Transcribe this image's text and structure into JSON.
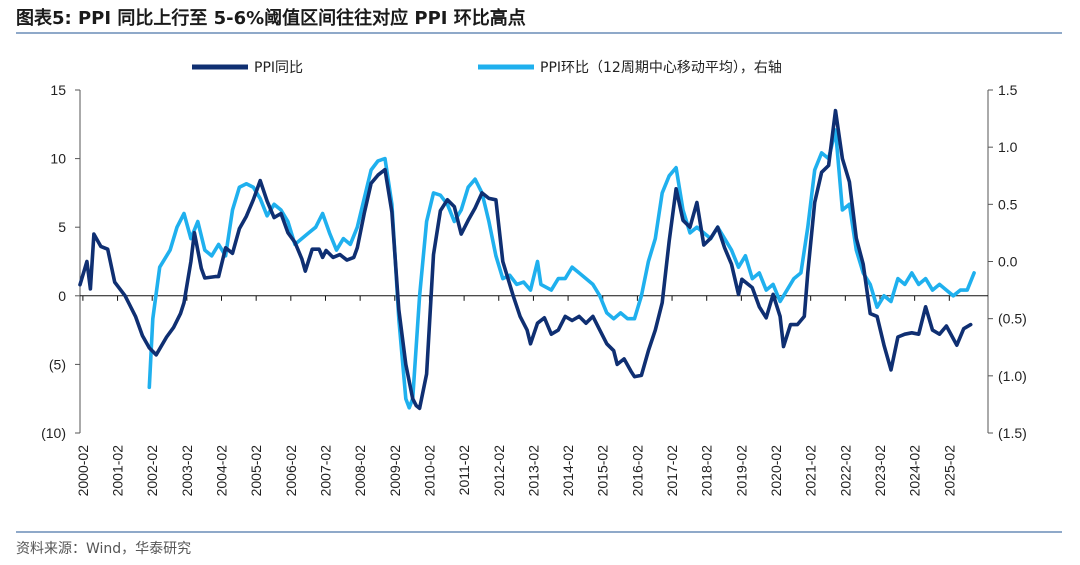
{
  "header": {
    "title": "图表5:  PPI 同比上行至 5-6%阈值区间往往对应 PPI 环比高点"
  },
  "footer": {
    "source": "资料来源：Wind，华泰研究"
  },
  "colors": {
    "series1": "#0f2f72",
    "series2": "#1fb0ee",
    "axis": "#555555",
    "text": "#222222"
  },
  "chart_data": {
    "type": "line",
    "title": "PPI 同比上行至 5-6%阈值区间往往对应 PPI 环比高点",
    "x_tick_labels": [
      "2000-02",
      "2001-02",
      "2002-02",
      "2003-02",
      "2004-02",
      "2005-02",
      "2006-02",
      "2007-02",
      "2008-02",
      "2009-02",
      "2010-02",
      "2011-02",
      "2012-02",
      "2013-02",
      "2014-02",
      "2015-02",
      "2016-02",
      "2017-02",
      "2018-02",
      "2019-02",
      "2020-02",
      "2021-02",
      "2022-02",
      "2023-02",
      "2024-02",
      "2025-02"
    ],
    "x_range": [
      2000.0,
      2026.2
    ],
    "y_left": {
      "range": [
        -10,
        15
      ],
      "tick_values": [
        15,
        10,
        5,
        0,
        -5,
        -10
      ],
      "tick_labels": [
        "15",
        "10",
        "5",
        "0",
        "(5)",
        "(10)"
      ]
    },
    "y_right": {
      "range": [
        -1.5,
        1.5
      ],
      "tick_values": [
        1.5,
        1.0,
        0.5,
        0.0,
        -0.5,
        -1.0,
        -1.5
      ],
      "tick_labels": [
        "1.5",
        "1.0",
        "0.5",
        "0.0",
        "(0.5)",
        "(1.0)",
        "(1.5)"
      ]
    },
    "legend": {
      "position": "top-center"
    },
    "series": [
      {
        "name": "PPI同比",
        "axis": "left",
        "points": [
          [
            2000.0,
            0.8
          ],
          [
            2000.2,
            2.5
          ],
          [
            2000.3,
            0.5
          ],
          [
            2000.4,
            4.5
          ],
          [
            2000.6,
            3.6
          ],
          [
            2000.8,
            3.4
          ],
          [
            2001.0,
            1.0
          ],
          [
            2001.3,
            0.0
          ],
          [
            2001.6,
            -1.5
          ],
          [
            2001.8,
            -2.9
          ],
          [
            2002.0,
            -3.8
          ],
          [
            2002.2,
            -4.3
          ],
          [
            2002.5,
            -3.0
          ],
          [
            2002.7,
            -2.3
          ],
          [
            2002.9,
            -1.3
          ],
          [
            2003.0,
            -0.5
          ],
          [
            2003.2,
            2.5
          ],
          [
            2003.3,
            4.6
          ],
          [
            2003.5,
            2.0
          ],
          [
            2003.6,
            1.3
          ],
          [
            2003.9,
            1.4
          ],
          [
            2004.0,
            1.4
          ],
          [
            2004.2,
            3.5
          ],
          [
            2004.4,
            3.1
          ],
          [
            2004.6,
            4.9
          ],
          [
            2004.8,
            5.8
          ],
          [
            2005.0,
            7.0
          ],
          [
            2005.2,
            8.4
          ],
          [
            2005.4,
            6.9
          ],
          [
            2005.6,
            5.7
          ],
          [
            2005.8,
            6.0
          ],
          [
            2006.0,
            4.6
          ],
          [
            2006.2,
            3.9
          ],
          [
            2006.4,
            2.7
          ],
          [
            2006.5,
            1.8
          ],
          [
            2006.7,
            3.4
          ],
          [
            2006.9,
            3.4
          ],
          [
            2007.0,
            2.8
          ],
          [
            2007.1,
            3.3
          ],
          [
            2007.3,
            2.8
          ],
          [
            2007.5,
            3.0
          ],
          [
            2007.7,
            2.6
          ],
          [
            2007.9,
            2.8
          ],
          [
            2008.0,
            3.5
          ],
          [
            2008.2,
            6.0
          ],
          [
            2008.4,
            8.2
          ],
          [
            2008.6,
            8.8
          ],
          [
            2008.8,
            9.2
          ],
          [
            2009.0,
            6.1
          ],
          [
            2009.2,
            -1.0
          ],
          [
            2009.4,
            -5.0
          ],
          [
            2009.6,
            -7.5
          ],
          [
            2009.7,
            -8.0
          ],
          [
            2009.8,
            -8.2
          ],
          [
            2010.0,
            -5.7
          ],
          [
            2010.2,
            3.0
          ],
          [
            2010.4,
            6.2
          ],
          [
            2010.6,
            7.0
          ],
          [
            2010.8,
            6.5
          ],
          [
            2011.0,
            4.5
          ],
          [
            2011.2,
            5.5
          ],
          [
            2011.4,
            6.4
          ],
          [
            2011.6,
            7.5
          ],
          [
            2011.8,
            7.1
          ],
          [
            2012.0,
            7.0
          ],
          [
            2012.2,
            2.5
          ],
          [
            2012.5,
            0.0
          ],
          [
            2012.7,
            -1.5
          ],
          [
            2012.9,
            -2.5
          ],
          [
            2013.0,
            -3.5
          ],
          [
            2013.2,
            -2.0
          ],
          [
            2013.4,
            -1.6
          ],
          [
            2013.6,
            -2.8
          ],
          [
            2013.8,
            -2.5
          ],
          [
            2014.0,
            -1.5
          ],
          [
            2014.2,
            -1.8
          ],
          [
            2014.4,
            -1.5
          ],
          [
            2014.6,
            -2.0
          ],
          [
            2014.8,
            -1.5
          ],
          [
            2015.0,
            -2.5
          ],
          [
            2015.2,
            -3.5
          ],
          [
            2015.4,
            -4.0
          ],
          [
            2015.5,
            -5.0
          ],
          [
            2015.7,
            -4.6
          ],
          [
            2015.9,
            -5.5
          ],
          [
            2016.0,
            -5.9
          ],
          [
            2016.2,
            -5.8
          ],
          [
            2016.4,
            -4.0
          ],
          [
            2016.6,
            -2.5
          ],
          [
            2016.8,
            -0.5
          ],
          [
            2017.0,
            4.0
          ],
          [
            2017.2,
            7.8
          ],
          [
            2017.4,
            5.5
          ],
          [
            2017.6,
            5.0
          ],
          [
            2017.8,
            6.8
          ],
          [
            2018.0,
            3.7
          ],
          [
            2018.2,
            4.2
          ],
          [
            2018.4,
            5.0
          ],
          [
            2018.6,
            3.5
          ],
          [
            2018.8,
            2.3
          ],
          [
            2019.0,
            0.1
          ],
          [
            2019.1,
            1.2
          ],
          [
            2019.4,
            0.6
          ],
          [
            2019.6,
            -0.8
          ],
          [
            2019.8,
            -1.6
          ],
          [
            2020.0,
            0.1
          ],
          [
            2020.2,
            -1.5
          ],
          [
            2020.3,
            -3.7
          ],
          [
            2020.5,
            -2.1
          ],
          [
            2020.7,
            -2.1
          ],
          [
            2020.9,
            -1.5
          ],
          [
            2021.0,
            1.7
          ],
          [
            2021.2,
            6.8
          ],
          [
            2021.4,
            9.0
          ],
          [
            2021.6,
            9.5
          ],
          [
            2021.8,
            13.5
          ],
          [
            2022.0,
            10.0
          ],
          [
            2022.2,
            8.3
          ],
          [
            2022.4,
            4.2
          ],
          [
            2022.6,
            2.3
          ],
          [
            2022.8,
            -1.3
          ],
          [
            2023.0,
            -1.5
          ],
          [
            2023.2,
            -3.6
          ],
          [
            2023.4,
            -5.4
          ],
          [
            2023.6,
            -3.0
          ],
          [
            2023.8,
            -2.8
          ],
          [
            2024.0,
            -2.7
          ],
          [
            2024.2,
            -2.8
          ],
          [
            2024.4,
            -0.8
          ],
          [
            2024.6,
            -2.5
          ],
          [
            2024.8,
            -2.8
          ],
          [
            2025.0,
            -2.2
          ],
          [
            2025.3,
            -3.6
          ],
          [
            2025.5,
            -2.4
          ],
          [
            2025.7,
            -2.1
          ]
        ]
      },
      {
        "name": "PPI环比（12周期中心移动平均），右轴",
        "axis": "right",
        "points": [
          [
            2002.0,
            -1.1
          ],
          [
            2002.1,
            -0.5
          ],
          [
            2002.3,
            -0.05
          ],
          [
            2002.6,
            0.1
          ],
          [
            2002.8,
            0.3
          ],
          [
            2003.0,
            0.42
          ],
          [
            2003.2,
            0.2
          ],
          [
            2003.4,
            0.35
          ],
          [
            2003.6,
            0.1
          ],
          [
            2003.8,
            0.05
          ],
          [
            2004.0,
            0.15
          ],
          [
            2004.2,
            0.05
          ],
          [
            2004.4,
            0.45
          ],
          [
            2004.6,
            0.65
          ],
          [
            2004.8,
            0.68
          ],
          [
            2005.0,
            0.65
          ],
          [
            2005.2,
            0.55
          ],
          [
            2005.4,
            0.4
          ],
          [
            2005.6,
            0.5
          ],
          [
            2005.8,
            0.45
          ],
          [
            2006.0,
            0.35
          ],
          [
            2006.2,
            0.15
          ],
          [
            2006.4,
            0.2
          ],
          [
            2006.6,
            0.25
          ],
          [
            2006.8,
            0.3
          ],
          [
            2007.0,
            0.42
          ],
          [
            2007.2,
            0.25
          ],
          [
            2007.4,
            0.1
          ],
          [
            2007.6,
            0.2
          ],
          [
            2007.8,
            0.15
          ],
          [
            2008.0,
            0.3
          ],
          [
            2008.2,
            0.55
          ],
          [
            2008.4,
            0.8
          ],
          [
            2008.6,
            0.88
          ],
          [
            2008.8,
            0.9
          ],
          [
            2009.0,
            0.5
          ],
          [
            2009.2,
            -0.5
          ],
          [
            2009.4,
            -1.2
          ],
          [
            2009.5,
            -1.28
          ],
          [
            2009.6,
            -1.2
          ],
          [
            2009.8,
            -0.3
          ],
          [
            2010.0,
            0.35
          ],
          [
            2010.2,
            0.6
          ],
          [
            2010.4,
            0.58
          ],
          [
            2010.6,
            0.5
          ],
          [
            2010.8,
            0.35
          ],
          [
            2011.0,
            0.45
          ],
          [
            2011.2,
            0.65
          ],
          [
            2011.4,
            0.72
          ],
          [
            2011.6,
            0.6
          ],
          [
            2011.8,
            0.35
          ],
          [
            2012.0,
            0.05
          ],
          [
            2012.2,
            -0.15
          ],
          [
            2012.4,
            -0.12
          ],
          [
            2012.6,
            -0.2
          ],
          [
            2012.8,
            -0.18
          ],
          [
            2013.0,
            -0.25
          ],
          [
            2013.2,
            0.0
          ],
          [
            2013.3,
            -0.2
          ],
          [
            2013.6,
            -0.25
          ],
          [
            2013.8,
            -0.15
          ],
          [
            2014.0,
            -0.15
          ],
          [
            2014.2,
            -0.05
          ],
          [
            2014.4,
            -0.1
          ],
          [
            2014.6,
            -0.15
          ],
          [
            2014.8,
            -0.2
          ],
          [
            2015.0,
            -0.3
          ],
          [
            2015.2,
            -0.45
          ],
          [
            2015.4,
            -0.5
          ],
          [
            2015.6,
            -0.45
          ],
          [
            2015.8,
            -0.5
          ],
          [
            2016.0,
            -0.5
          ],
          [
            2016.2,
            -0.3
          ],
          [
            2016.4,
            0.0
          ],
          [
            2016.6,
            0.2
          ],
          [
            2016.8,
            0.6
          ],
          [
            2017.0,
            0.75
          ],
          [
            2017.2,
            0.82
          ],
          [
            2017.4,
            0.45
          ],
          [
            2017.6,
            0.25
          ],
          [
            2017.8,
            0.3
          ],
          [
            2018.0,
            0.25
          ],
          [
            2018.2,
            0.2
          ],
          [
            2018.4,
            0.3
          ],
          [
            2018.6,
            0.2
          ],
          [
            2018.8,
            0.1
          ],
          [
            2019.0,
            -0.05
          ],
          [
            2019.2,
            0.05
          ],
          [
            2019.4,
            -0.15
          ],
          [
            2019.6,
            -0.1
          ],
          [
            2019.8,
            -0.25
          ],
          [
            2020.0,
            -0.2
          ],
          [
            2020.2,
            -0.35
          ],
          [
            2020.4,
            -0.25
          ],
          [
            2020.6,
            -0.15
          ],
          [
            2020.8,
            -0.1
          ],
          [
            2021.0,
            0.3
          ],
          [
            2021.2,
            0.8
          ],
          [
            2021.4,
            0.95
          ],
          [
            2021.6,
            0.9
          ],
          [
            2021.8,
            1.15
          ],
          [
            2022.0,
            0.45
          ],
          [
            2022.2,
            0.5
          ],
          [
            2022.4,
            0.1
          ],
          [
            2022.6,
            -0.1
          ],
          [
            2022.8,
            -0.2
          ],
          [
            2023.0,
            -0.4
          ],
          [
            2023.2,
            -0.3
          ],
          [
            2023.4,
            -0.35
          ],
          [
            2023.6,
            -0.15
          ],
          [
            2023.8,
            -0.2
          ],
          [
            2024.0,
            -0.1
          ],
          [
            2024.2,
            -0.2
          ],
          [
            2024.4,
            -0.15
          ],
          [
            2024.6,
            -0.25
          ],
          [
            2024.8,
            -0.2
          ],
          [
            2025.0,
            -0.25
          ],
          [
            2025.2,
            -0.3
          ],
          [
            2025.4,
            -0.25
          ],
          [
            2025.6,
            -0.25
          ],
          [
            2025.8,
            -0.1
          ]
        ]
      }
    ]
  }
}
